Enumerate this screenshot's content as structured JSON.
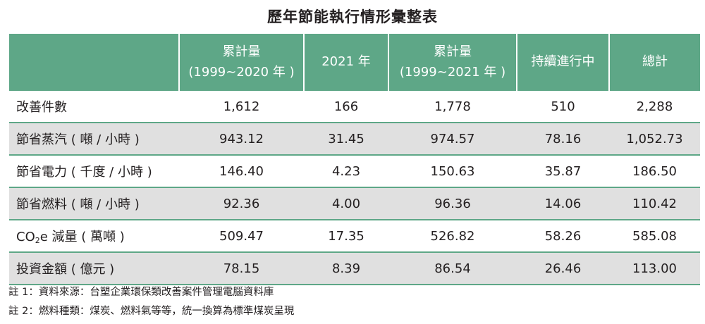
{
  "title": "歷年節能執行情形彙整表",
  "table": {
    "headers": [
      {
        "line1": "",
        "line2": ""
      },
      {
        "line1": "累計量",
        "line2": "(1999~2020 年 )"
      },
      {
        "line1": "2021 年",
        "line2": ""
      },
      {
        "line1": "累計量",
        "line2": "(1999~2021 年 )"
      },
      {
        "line1": "持續進行中",
        "line2": ""
      },
      {
        "line1": "總計",
        "line2": ""
      }
    ],
    "rows": [
      {
        "label": "改善件數",
        "values": [
          "1,612",
          "166",
          "1,778",
          "510",
          "2,288"
        ]
      },
      {
        "label": "節省蒸汽 ( 噸 / 小時 )",
        "values": [
          "943.12",
          "31.45",
          "974.57",
          "78.16",
          "1,052.73"
        ]
      },
      {
        "label": "節省電力 ( 千度 / 小時 )",
        "values": [
          "146.40",
          "4.23",
          "150.63",
          "35.87",
          "186.50"
        ]
      },
      {
        "label": "節省燃料 ( 噸 / 小時 )",
        "values": [
          "92.36",
          "4.00",
          "96.36",
          "14.06",
          "110.42"
        ]
      },
      {
        "label_pre": "CO",
        "label_sub": "2",
        "label_post": "e 減量 ( 萬噸 )",
        "values": [
          "509.47",
          "17.35",
          "526.82",
          "58.26",
          "585.08"
        ]
      },
      {
        "label": "投資金額 ( 億元 )",
        "values": [
          "78.15",
          "8.39",
          "86.54",
          "26.46",
          "113.00"
        ]
      }
    ]
  },
  "notes": [
    "註 1：資料來源：台塑企業環保類改善案件管理電腦資料庫",
    "註 2：燃料種類：煤炭、燃料氣等等，統一換算為標準煤炭呈現"
  ],
  "colors": {
    "header_bg": "#5ea787",
    "row_shade": "#e0e0e0",
    "text": "#231f20"
  }
}
